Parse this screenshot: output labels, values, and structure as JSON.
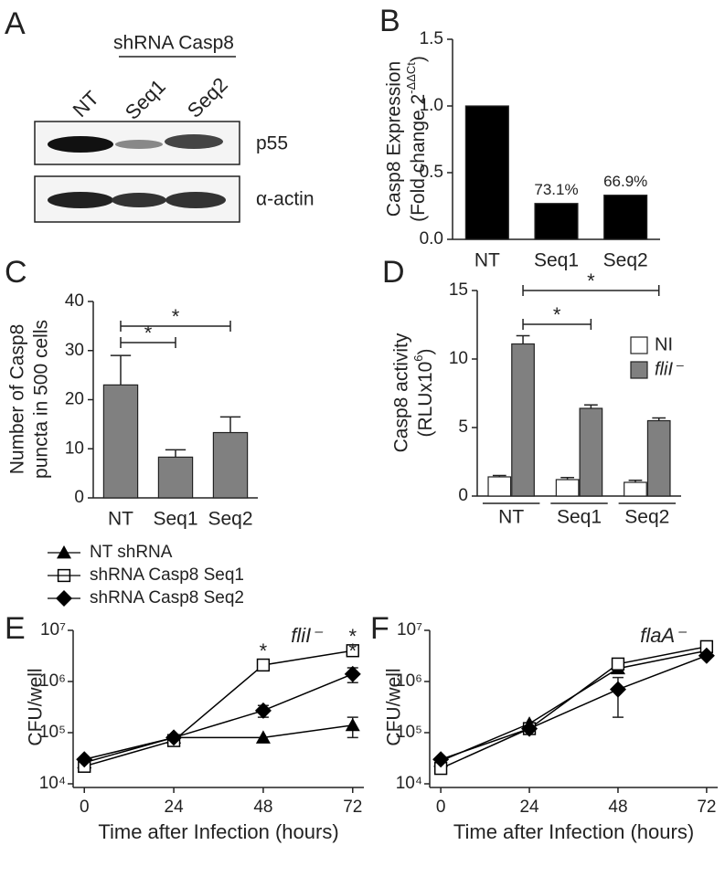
{
  "blot": {
    "panel": "A",
    "group_label": "shRNA Casp8",
    "lanes": [
      "NT",
      "Seq1",
      "Seq2"
    ],
    "bands": [
      "p55",
      "α-actin"
    ]
  },
  "chart_data": [
    {
      "type": "bar",
      "panel": "B",
      "ylabel": [
        "Casp8 Expression",
        [
          "(Fold change 2",
          {
            "text": "-ΔΔCt",
            "sup": true
          },
          ")"
        ]
      ],
      "categories": [
        "NT",
        "Seq1",
        "Seq2"
      ],
      "values": [
        1.0,
        0.269,
        0.331
      ],
      "color": "#000000",
      "annotations": [
        {
          "category": "Seq1",
          "text": "73.1%"
        },
        {
          "category": "Seq2",
          "text": "66.9%"
        }
      ],
      "ylim": [
        0,
        1.5
      ],
      "yticks": [
        {
          "value": 0,
          "label": "0.0"
        },
        0.5,
        {
          "value": 1,
          "label": "1.0"
        },
        1.5
      ]
    },
    {
      "type": "bar",
      "panel": "C",
      "ylabel": [
        "Number of Casp8",
        "puncta in 500 cells"
      ],
      "categories": [
        "NT",
        "Seq1",
        "Seq2"
      ],
      "values": [
        23,
        8.3,
        13.3
      ],
      "errors": [
        6,
        1.5,
        3.2
      ],
      "color": "#808080",
      "significance": [
        {
          "from": "NT",
          "to": "Seq1",
          "label": "*"
        },
        {
          "from": "NT",
          "to": "Seq2",
          "label": "*"
        }
      ],
      "ylim": [
        0,
        40
      ],
      "yticks": [
        0,
        10,
        20,
        30,
        40
      ]
    },
    {
      "type": "bar",
      "panel": "D",
      "ylabel": [
        "Casp8 activity",
        [
          "(RLUx10",
          {
            "text": "6",
            "sup": true
          },
          ")"
        ]
      ],
      "categories": [
        "NT",
        "Seq1",
        "Seq2"
      ],
      "series": [
        {
          "name": "NI",
          "color": "#ffffff",
          "values": [
            1.4,
            1.2,
            1.0
          ],
          "errors": [
            0.1,
            0.15,
            0.15
          ]
        },
        {
          "name": "fliI⁻",
          "color": "#808080",
          "values": [
            11.1,
            6.4,
            5.5
          ],
          "errors": [
            0.6,
            0.25,
            0.2
          ]
        }
      ],
      "significance": [
        {
          "from": "NT",
          "to": "Seq1",
          "label": "*"
        },
        {
          "from": "NT",
          "to": "Seq2",
          "label": "*"
        }
      ],
      "ylim": [
        0,
        15
      ],
      "yticks": [
        0,
        5,
        10,
        15
      ]
    },
    {
      "type": "line",
      "panel": "E",
      "title": "fliI⁻",
      "xlabel": "Time after Infection (hours)",
      "ylabel": [
        "CFU/well"
      ],
      "log_y": true,
      "x": [
        0,
        24,
        48,
        72
      ],
      "series": [
        {
          "name": "NT shRNA",
          "marker": "triangle",
          "color": "#000000",
          "values": [
            26000,
            80000,
            80000,
            140000
          ],
          "errors": [
            null,
            null,
            null,
            60000
          ]
        },
        {
          "name": "shRNA Casp8 Seq1",
          "marker": "square",
          "color": "#000000",
          "values": [
            22000,
            70000,
            2100000,
            4000000
          ],
          "errors": [
            null,
            null,
            null,
            null
          ]
        },
        {
          "name": "shRNA Casp8 Seq2",
          "marker": "diamond",
          "color": "#000000",
          "values": [
            30000,
            80000,
            270000,
            1400000
          ],
          "errors": [
            null,
            null,
            70000,
            450000
          ]
        }
      ],
      "annotations": [
        {
          "x": 48,
          "text": "*"
        },
        {
          "x": 72,
          "text": "*"
        },
        {
          "x": 72,
          "text": "*"
        }
      ],
      "xlim": [
        -3,
        75
      ],
      "xticks": [
        0,
        24,
        48,
        72
      ],
      "ylim": [
        10000,
        10000000
      ],
      "yticks": [
        {
          "value": 10000,
          "label": "10⁴"
        },
        {
          "value": 100000,
          "label": "10⁵"
        },
        {
          "value": 1000000,
          "label": "10⁶"
        },
        {
          "value": 10000000,
          "label": "10⁷"
        }
      ]
    },
    {
      "type": "line",
      "panel": "F",
      "title": "flaA⁻",
      "xlabel": "Time after Infection (hours)",
      "ylabel": [
        "CFU/well"
      ],
      "log_y": true,
      "x": [
        0,
        24,
        48,
        72
      ],
      "series": [
        {
          "marker": "triangle",
          "color": "#000000",
          "values": [
            28000,
            150000,
            1800000,
            4000000
          ],
          "errors": [
            null,
            null,
            null,
            null
          ]
        },
        {
          "marker": "square",
          "color": "#000000",
          "values": [
            20000,
            120000,
            2200000,
            4800000
          ],
          "errors": [
            null,
            null,
            null,
            null
          ]
        },
        {
          "marker": "diamond",
          "color": "#000000",
          "values": [
            30000,
            120000,
            700000,
            3200000
          ],
          "errors": [
            null,
            null,
            500000,
            null
          ]
        }
      ],
      "xlim": [
        -3,
        75
      ],
      "xticks": [
        0,
        24,
        48,
        72
      ],
      "ylim": [
        10000,
        10000000
      ],
      "yticks": [
        {
          "value": 10000,
          "label": "10⁴"
        },
        {
          "value": 100000,
          "label": "10⁵"
        },
        {
          "value": 1000000,
          "label": "10⁶"
        },
        {
          "value": 10000000,
          "label": "10⁷"
        }
      ]
    }
  ]
}
